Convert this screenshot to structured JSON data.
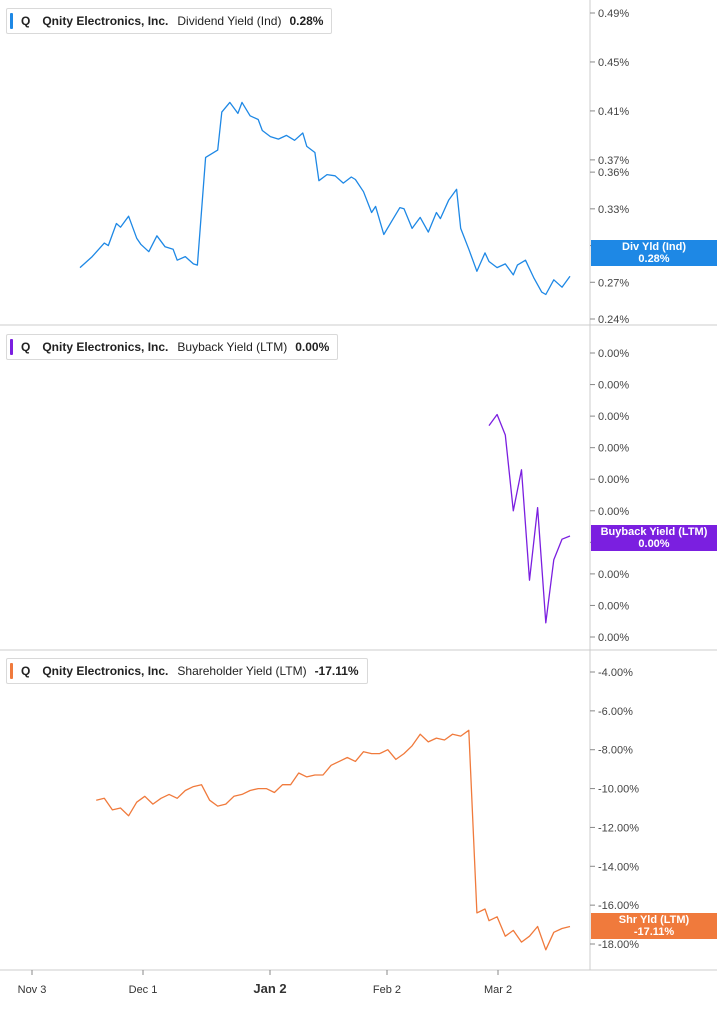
{
  "colors": {
    "dividend": "#1e88e5",
    "buyback": "#7b1fe0",
    "shareholder": "#f07a3c",
    "axis": "#888888",
    "divider": "#cccccc"
  },
  "x_axis": {
    "tick_labels": [
      "Nov 3",
      "Dec 1",
      "Jan 2",
      "Feb 2",
      "Mar 2"
    ],
    "bold_label": "Jan 2"
  },
  "chart_data": [
    {
      "type": "line",
      "legend": {
        "ticker": "Q",
        "company": "Qnity Electronics, Inc.",
        "metric": "Dividend Yield (Ind)",
        "value": "0.28%"
      },
      "badge": {
        "label": "Div Yld (Ind)",
        "value": "0.28%"
      },
      "y_ticks": [
        "0.49%",
        "0.45%",
        "0.41%",
        "0.37%",
        "0.36%",
        "0.33%",
        "0.30%",
        "0.27%",
        "0.24%"
      ],
      "y_tick_values": [
        0.49,
        0.45,
        0.41,
        0.37,
        0.36,
        0.33,
        0.3,
        0.27,
        0.24
      ],
      "ylim": [
        0.235,
        0.5
      ],
      "x_range": [
        -26,
        124
      ],
      "x": [
        0,
        3,
        6,
        7,
        9,
        10,
        12,
        14,
        15,
        17,
        19,
        21,
        23,
        24,
        26,
        28,
        29,
        31,
        34,
        35,
        37,
        39,
        40,
        42,
        44,
        45,
        47,
        49,
        51,
        53,
        55,
        56,
        58,
        59,
        61,
        63,
        65,
        67,
        68,
        70,
        72,
        73,
        75,
        77,
        79,
        80,
        82,
        84,
        86,
        88,
        89,
        91,
        93,
        94,
        96,
        98,
        100,
        101,
        103,
        105,
        107,
        108,
        110,
        112,
        114,
        115,
        117,
        119,
        121
      ],
      "y": [
        0.282,
        0.291,
        0.302,
        0.3,
        0.318,
        0.315,
        0.324,
        0.306,
        0.301,
        0.295,
        0.308,
        0.299,
        0.297,
        0.288,
        0.291,
        0.285,
        0.284,
        0.372,
        0.378,
        0.409,
        0.417,
        0.408,
        0.417,
        0.406,
        0.403,
        0.394,
        0.389,
        0.387,
        0.39,
        0.386,
        0.392,
        0.381,
        0.376,
        0.353,
        0.358,
        0.357,
        0.351,
        0.356,
        0.354,
        0.344,
        0.327,
        0.332,
        0.309,
        0.32,
        0.331,
        0.33,
        0.314,
        0.323,
        0.311,
        0.327,
        0.322,
        0.337,
        0.346,
        0.314,
        0.297,
        0.279,
        0.294,
        0.287,
        0.282,
        0.285,
        0.276,
        0.284,
        0.288,
        0.274,
        0.262,
        0.26,
        0.272,
        0.266,
        0.275
      ]
    },
    {
      "type": "line",
      "legend": {
        "ticker": "Q",
        "company": "Qnity Electronics, Inc.",
        "metric": "Buyback Yield (LTM)",
        "value": "0.00%"
      },
      "badge": {
        "label": "Buyback Yield (LTM)",
        "value": "0.00%"
      },
      "y_ticks": [
        "0.00%",
        "0.00%",
        "0.00%",
        "0.00%",
        "0.00%",
        "0.00%",
        "0.00%",
        "0.00%",
        "0.00%",
        "0.00%"
      ],
      "y_tick_values": [
        9,
        8,
        7,
        6,
        5,
        4,
        3,
        2,
        1,
        0
      ],
      "ylim": [
        -0.25,
        9.35
      ],
      "x_range": [
        -26,
        124
      ],
      "x": [
        101,
        103,
        105,
        107,
        109,
        111,
        113,
        115,
        117,
        119,
        121
      ],
      "y": [
        6.7,
        7.05,
        6.4,
        4.0,
        5.3,
        1.8,
        4.1,
        0.45,
        2.45,
        3.1,
        3.2
      ],
      "note": "all tick values render as 0.00% (values are near zero)"
    },
    {
      "type": "line",
      "legend": {
        "ticker": "Q",
        "company": "Qnity Electronics, Inc.",
        "metric": "Shareholder Yield (LTM)",
        "value": "-17.11%"
      },
      "badge": {
        "label": "Shr Yld (LTM)",
        "value": "-17.11%"
      },
      "y_ticks": [
        "-4.00%",
        "-6.00%",
        "-8.00%",
        "-10.00%",
        "-12.00%",
        "-14.00%",
        "-16.00%",
        "-18.00%"
      ],
      "y_tick_values": [
        -4,
        -6,
        -8,
        -10,
        -12,
        -14,
        -16,
        -18
      ],
      "ylim": [
        -18.5,
        -3.1
      ],
      "x_range": [
        -26,
        124
      ],
      "x": [
        4,
        6,
        8,
        10,
        12,
        14,
        16,
        18,
        20,
        22,
        24,
        26,
        28,
        30,
        32,
        34,
        36,
        38,
        40,
        42,
        44,
        46,
        48,
        50,
        52,
        54,
        56,
        58,
        60,
        62,
        64,
        66,
        68,
        70,
        72,
        74,
        76,
        78,
        80,
        82,
        84,
        86,
        88,
        90,
        92,
        94,
        96,
        98,
        100,
        101,
        103,
        105,
        107,
        109,
        111,
        113,
        115,
        117,
        119,
        121
      ],
      "y": [
        -10.6,
        -10.5,
        -11.1,
        -11.0,
        -11.4,
        -10.7,
        -10.4,
        -10.8,
        -10.5,
        -10.3,
        -10.5,
        -10.1,
        -9.9,
        -9.8,
        -10.6,
        -10.9,
        -10.8,
        -10.4,
        -10.3,
        -10.1,
        -10.0,
        -10.0,
        -10.2,
        -9.8,
        -9.8,
        -9.2,
        -9.4,
        -9.3,
        -9.3,
        -8.8,
        -8.6,
        -8.4,
        -8.6,
        -8.1,
        -8.2,
        -8.2,
        -8.0,
        -8.5,
        -8.2,
        -7.8,
        -7.2,
        -7.6,
        -7.4,
        -7.5,
        -7.2,
        -7.3,
        -7.0,
        -16.4,
        -16.2,
        -16.8,
        -16.6,
        -17.6,
        -17.3,
        -17.9,
        -17.6,
        -17.1,
        -18.3,
        -17.4,
        -17.2,
        -17.1
      ]
    }
  ]
}
